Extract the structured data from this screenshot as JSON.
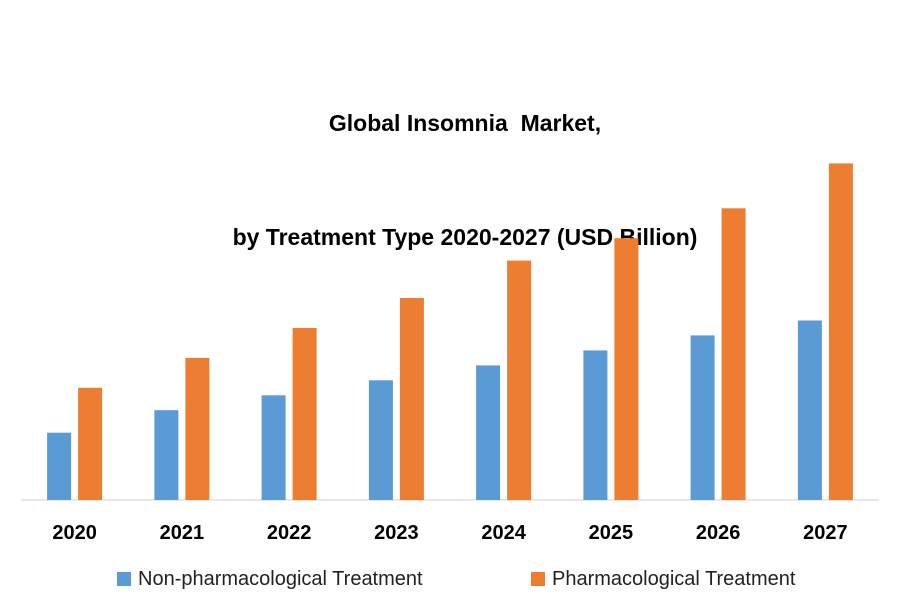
{
  "chart_data": {
    "type": "bar",
    "title": [
      "Global Insomnia  Market,",
      "by Treatment Type 2020-2027 (USD Billion)"
    ],
    "categories": [
      "2020",
      "2021",
      "2022",
      "2023",
      "2024",
      "2025",
      "2026",
      "2027"
    ],
    "series": [
      {
        "name": "Non-pharmacological Treatment",
        "color": "#5B9BD5",
        "values": [
          1.8,
          2.4,
          2.8,
          3.2,
          3.6,
          4.0,
          4.4,
          4.8
        ]
      },
      {
        "name": "Pharmacological Treatment",
        "color": "#ED7D31",
        "values": [
          3.0,
          3.8,
          4.6,
          5.4,
          6.4,
          7.0,
          7.8,
          9.0
        ]
      }
    ],
    "xlabel": "",
    "ylabel": "",
    "ylim": [
      0,
      10
    ],
    "grid": false,
    "legend": "bottom"
  }
}
